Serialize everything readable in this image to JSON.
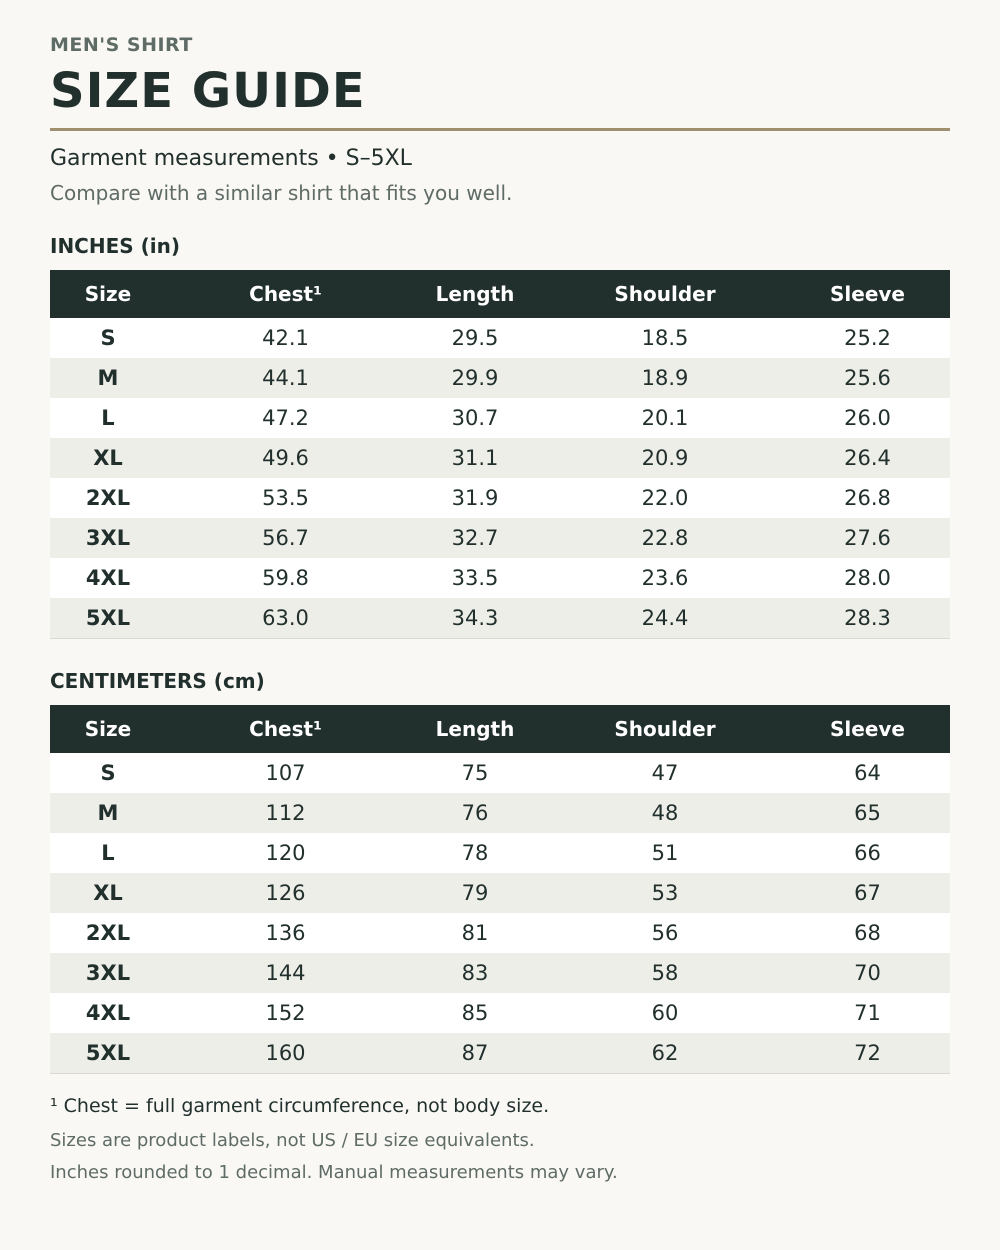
{
  "header": {
    "eyebrow": "MEN'S SHIRT",
    "title": "SIZE GUIDE",
    "subtitle": "Garment measurements • S–5XL",
    "lead": "Compare with a similar shirt that fits you well."
  },
  "inches": {
    "label": "INCHES (in)",
    "columns": [
      "Size",
      "Chest¹",
      "Length",
      "Shoulder",
      "Sleeve"
    ],
    "rows": [
      [
        "S",
        "42.1",
        "29.5",
        "18.5",
        "25.2"
      ],
      [
        "M",
        "44.1",
        "29.9",
        "18.9",
        "25.6"
      ],
      [
        "L",
        "47.2",
        "30.7",
        "20.1",
        "26.0"
      ],
      [
        "XL",
        "49.6",
        "31.1",
        "20.9",
        "26.4"
      ],
      [
        "2XL",
        "53.5",
        "31.9",
        "22.0",
        "26.8"
      ],
      [
        "3XL",
        "56.7",
        "32.7",
        "22.8",
        "27.6"
      ],
      [
        "4XL",
        "59.8",
        "33.5",
        "23.6",
        "28.0"
      ],
      [
        "5XL",
        "63.0",
        "34.3",
        "24.4",
        "28.3"
      ]
    ]
  },
  "centimeters": {
    "label": "CENTIMETERS (cm)",
    "columns": [
      "Size",
      "Chest¹",
      "Length",
      "Shoulder",
      "Sleeve"
    ],
    "rows": [
      [
        "S",
        "107",
        "75",
        "47",
        "64"
      ],
      [
        "M",
        "112",
        "76",
        "48",
        "65"
      ],
      [
        "L",
        "120",
        "78",
        "51",
        "66"
      ],
      [
        "XL",
        "126",
        "79",
        "53",
        "67"
      ],
      [
        "2XL",
        "136",
        "81",
        "56",
        "68"
      ],
      [
        "3XL",
        "144",
        "83",
        "58",
        "70"
      ],
      [
        "4XL",
        "152",
        "85",
        "60",
        "71"
      ],
      [
        "5XL",
        "160",
        "87",
        "62",
        "72"
      ]
    ]
  },
  "footnotes": {
    "chest": "¹ Chest = full garment circumference, not body size.",
    "labels": "Sizes are product labels, not US / EU size equivalents.",
    "rounding": "Inches rounded to 1 decimal. Manual measurements may vary."
  },
  "colors": {
    "header_bg": "#22302d",
    "rule": "#a08f6e",
    "row_alt": "#eeeee9",
    "background": "#f9f8f5"
  }
}
